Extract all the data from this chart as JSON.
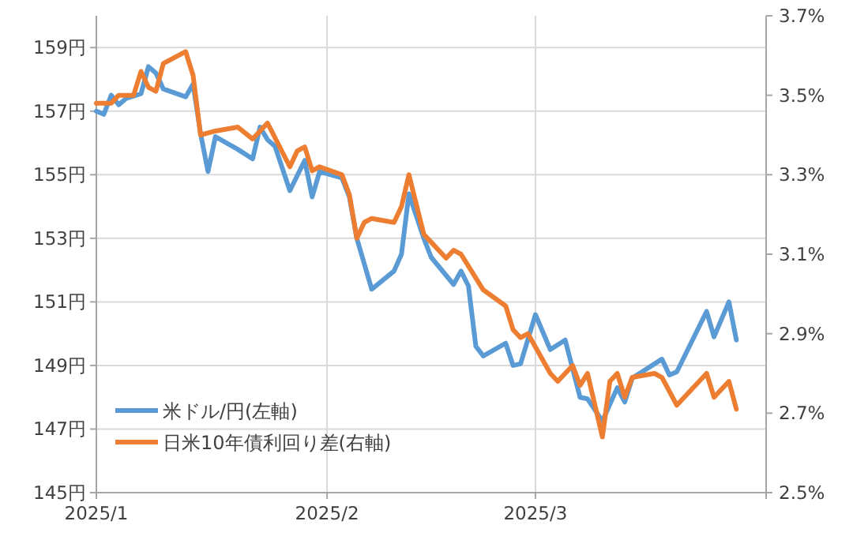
{
  "chart_data": {
    "type": "line",
    "grid": true,
    "legend": "bottom left",
    "line_style": "solid",
    "marker": "none",
    "xlim": [
      "2025-01-01",
      "2025-04-01"
    ],
    "xticks": [
      {
        "value": "2025-01-01",
        "label": "2025/1"
      },
      {
        "value": "2025-02-01",
        "label": "2025/2"
      },
      {
        "value": "2025-03-01",
        "label": "2025/3"
      },
      {
        "value": "2025-04-01",
        "label": null
      }
    ],
    "ylim": [
      145,
      160
    ],
    "yticks": [
      {
        "value": 145,
        "label": "145円"
      },
      {
        "value": 147,
        "label": "147円"
      },
      {
        "value": 149,
        "label": "149円"
      },
      {
        "value": 151,
        "label": "151円"
      },
      {
        "value": 153,
        "label": "153円"
      },
      {
        "value": 155,
        "label": "155円"
      },
      {
        "value": 157,
        "label": "157円"
      },
      {
        "value": 159,
        "label": "159円"
      }
    ],
    "y2lim": [
      2.5,
      3.7
    ],
    "y2ticks": [
      {
        "value": 2.5,
        "label": "2.5%"
      },
      {
        "value": 2.7,
        "label": "2.7%"
      },
      {
        "value": 2.9,
        "label": "2.9%"
      },
      {
        "value": 3.1,
        "label": "3.1%"
      },
      {
        "value": 3.3,
        "label": "3.3%"
      },
      {
        "value": 3.5,
        "label": "3.5%"
      },
      {
        "value": 3.7,
        "label": "3.7%"
      }
    ],
    "series": [
      {
        "name": "米ドル/円(左軸)",
        "color": "#5b9bd5",
        "x": [
          "2025-01-01",
          "2025-01-02",
          "2025-01-03",
          "2025-01-04",
          "2025-01-05",
          "2025-01-07",
          "2025-01-08",
          "2025-01-09",
          "2025-01-10",
          "2025-01-13",
          "2025-01-14",
          "2025-01-15",
          "2025-01-16",
          "2025-01-17",
          "2025-01-20",
          "2025-01-22",
          "2025-01-23",
          "2025-01-24",
          "2025-01-25",
          "2025-01-27",
          "2025-01-29",
          "2025-01-30",
          "2025-01-31",
          "2025-02-03",
          "2025-02-04",
          "2025-02-05",
          "2025-02-07",
          "2025-02-10",
          "2025-02-11",
          "2025-02-12",
          "2025-02-14",
          "2025-02-15",
          "2025-02-18",
          "2025-02-19",
          "2025-02-20",
          "2025-02-21",
          "2025-02-22",
          "2025-02-25",
          "2025-02-26",
          "2025-02-27",
          "2025-03-01",
          "2025-03-03",
          "2025-03-05",
          "2025-03-07",
          "2025-03-08",
          "2025-03-10",
          "2025-03-12",
          "2025-03-13",
          "2025-03-14",
          "2025-03-18",
          "2025-03-19",
          "2025-03-20",
          "2025-03-24",
          "2025-03-25",
          "2025-03-27",
          "2025-03-28"
        ],
        "values": [
          157.0,
          156.9,
          157.5,
          157.2,
          157.4,
          157.55,
          158.4,
          158.2,
          157.7,
          157.45,
          157.85,
          156.3,
          155.1,
          156.2,
          155.8,
          155.5,
          156.5,
          156.1,
          155.9,
          154.5,
          155.45,
          154.3,
          155.1,
          154.9,
          154.3,
          153.0,
          151.4,
          151.97,
          152.5,
          154.4,
          153.0,
          152.4,
          151.55,
          151.97,
          151.5,
          149.6,
          149.3,
          149.7,
          149.0,
          149.05,
          150.6,
          149.5,
          149.8,
          148.0,
          147.95,
          147.25,
          148.3,
          147.85,
          148.6,
          149.2,
          148.7,
          148.8,
          150.7,
          149.9,
          151.0,
          149.8
        ]
      },
      {
        "name": "日米10年債利回り差(右軸)",
        "color": "#ed7d31",
        "axis": "y2",
        "x": [
          "2025-01-01",
          "2025-01-03",
          "2025-01-04",
          "2025-01-05",
          "2025-01-06",
          "2025-01-07",
          "2025-01-08",
          "2025-01-09",
          "2025-01-10",
          "2025-01-13",
          "2025-01-14",
          "2025-01-15",
          "2025-01-17",
          "2025-01-20",
          "2025-01-22",
          "2025-01-24",
          "2025-01-27",
          "2025-01-28",
          "2025-01-29",
          "2025-01-30",
          "2025-01-31",
          "2025-02-03",
          "2025-02-04",
          "2025-02-05",
          "2025-02-06",
          "2025-02-07",
          "2025-02-10",
          "2025-02-11",
          "2025-02-12",
          "2025-02-14",
          "2025-02-15",
          "2025-02-17",
          "2025-02-18",
          "2025-02-19",
          "2025-02-20",
          "2025-02-22",
          "2025-02-25",
          "2025-02-26",
          "2025-02-27",
          "2025-02-28",
          "2025-03-03",
          "2025-03-04",
          "2025-03-05",
          "2025-03-06",
          "2025-03-07",
          "2025-03-08",
          "2025-03-10",
          "2025-03-11",
          "2025-03-12",
          "2025-03-13",
          "2025-03-14",
          "2025-03-17",
          "2025-03-18",
          "2025-03-20",
          "2025-03-24",
          "2025-03-25",
          "2025-03-27",
          "2025-03-28"
        ],
        "values": [
          3.48,
          3.48,
          3.5,
          3.5,
          3.5,
          3.56,
          3.52,
          3.51,
          3.58,
          3.61,
          3.55,
          3.4,
          3.41,
          3.42,
          3.39,
          3.43,
          3.32,
          3.36,
          3.37,
          3.31,
          3.32,
          3.3,
          3.25,
          3.14,
          3.18,
          3.19,
          3.18,
          3.22,
          3.3,
          3.15,
          3.13,
          3.09,
          3.11,
          3.1,
          3.07,
          3.01,
          2.97,
          2.91,
          2.89,
          2.9,
          2.8,
          2.78,
          2.8,
          2.82,
          2.77,
          2.8,
          2.64,
          2.78,
          2.8,
          2.74,
          2.79,
          2.8,
          2.79,
          2.72,
          2.8,
          2.74,
          2.78,
          2.71
        ]
      }
    ]
  }
}
